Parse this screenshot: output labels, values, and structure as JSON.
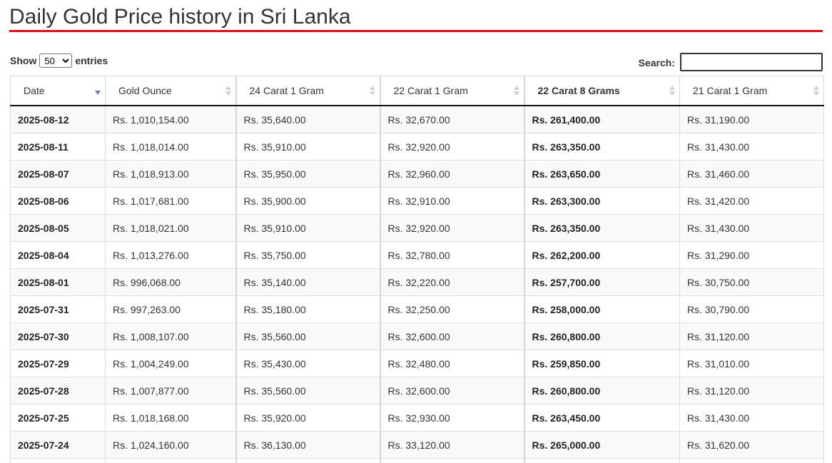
{
  "page": {
    "title": "Daily Gold Price history in Sri Lanka"
  },
  "controls": {
    "show_label": "Show",
    "entries_label": "entries",
    "page_length": "50",
    "search_label": "Search:",
    "search_value": ""
  },
  "colors": {
    "title_rule": "#e10f16",
    "sort_active": "#6b78c7"
  },
  "table": {
    "headers": [
      "Date",
      "Gold Ounce",
      "24 Carat 1 Gram",
      "22 Carat 1 Gram",
      "22 Carat 8 Grams",
      "21 Carat 1 Gram"
    ],
    "sort_column": "Date",
    "sort_direction": "descending",
    "rows": [
      [
        "2025-08-12",
        "Rs. 1,010,154.00",
        "Rs. 35,640.00",
        "Rs. 32,670.00",
        "Rs. 261,400.00",
        "Rs. 31,190.00"
      ],
      [
        "2025-08-11",
        "Rs. 1,018,014.00",
        "Rs. 35,910.00",
        "Rs. 32,920.00",
        "Rs. 263,350.00",
        "Rs. 31,430.00"
      ],
      [
        "2025-08-07",
        "Rs. 1,018,913.00",
        "Rs. 35,950.00",
        "Rs. 32,960.00",
        "Rs. 263,650.00",
        "Rs. 31,460.00"
      ],
      [
        "2025-08-06",
        "Rs. 1,017,681.00",
        "Rs. 35,900.00",
        "Rs. 32,910.00",
        "Rs. 263,300.00",
        "Rs. 31,420.00"
      ],
      [
        "2025-08-05",
        "Rs. 1,018,021.00",
        "Rs. 35,910.00",
        "Rs. 32,920.00",
        "Rs. 263,350.00",
        "Rs. 31,430.00"
      ],
      [
        "2025-08-04",
        "Rs. 1,013,276.00",
        "Rs. 35,750.00",
        "Rs. 32,780.00",
        "Rs. 262,200.00",
        "Rs. 31,290.00"
      ],
      [
        "2025-08-01",
        "Rs. 996,068.00",
        "Rs. 35,140.00",
        "Rs. 32,220.00",
        "Rs. 257,700.00",
        "Rs. 30,750.00"
      ],
      [
        "2025-07-31",
        "Rs. 997,263.00",
        "Rs. 35,180.00",
        "Rs. 32,250.00",
        "Rs. 258,000.00",
        "Rs. 30,790.00"
      ],
      [
        "2025-07-30",
        "Rs. 1,008,107.00",
        "Rs. 35,560.00",
        "Rs. 32,600.00",
        "Rs. 260,800.00",
        "Rs. 31,120.00"
      ],
      [
        "2025-07-29",
        "Rs. 1,004,249.00",
        "Rs. 35,430.00",
        "Rs. 32,480.00",
        "Rs. 259,850.00",
        "Rs. 31,010.00"
      ],
      [
        "2025-07-28",
        "Rs. 1,007,877.00",
        "Rs. 35,560.00",
        "Rs. 32,600.00",
        "Rs. 260,800.00",
        "Rs. 31,120.00"
      ],
      [
        "2025-07-25",
        "Rs. 1,018,168.00",
        "Rs. 35,920.00",
        "Rs. 32,930.00",
        "Rs. 263,450.00",
        "Rs. 31,430.00"
      ],
      [
        "2025-07-24",
        "Rs. 1,024,160.00",
        "Rs. 36,130.00",
        "Rs. 33,120.00",
        "Rs. 265,000.00",
        "Rs. 31,620.00"
      ],
      [
        "",
        "",
        "",
        "",
        "",
        ""
      ]
    ]
  }
}
